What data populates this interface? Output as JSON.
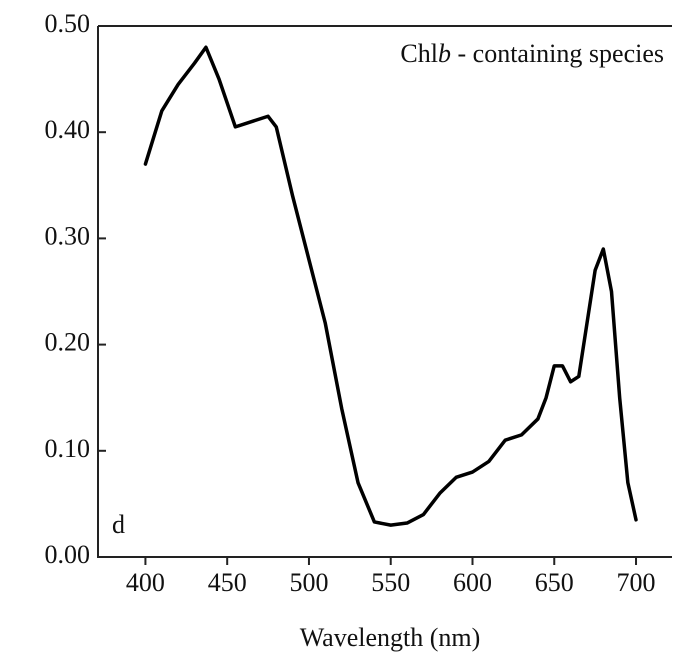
{
  "chart_data": {
    "type": "line",
    "annotation_parts": [
      "Chl",
      "b",
      " - containing species"
    ],
    "panel_label": "d",
    "x_label": "Wavelength (nm)",
    "x": [
      400,
      410,
      420,
      430,
      437,
      445,
      455,
      465,
      475,
      480,
      490,
      500,
      510,
      520,
      530,
      540,
      550,
      560,
      570,
      580,
      590,
      600,
      610,
      620,
      630,
      640,
      645,
      650,
      655,
      660,
      665,
      670,
      675,
      680,
      685,
      690,
      695,
      700
    ],
    "series": [
      {
        "color": "#000000",
        "values": [
          0.37,
          0.42,
          0.445,
          0.465,
          0.48,
          0.45,
          0.405,
          0.41,
          0.415,
          0.405,
          0.34,
          0.28,
          0.22,
          0.14,
          0.07,
          0.033,
          0.03,
          0.032,
          0.04,
          0.06,
          0.075,
          0.08,
          0.09,
          0.11,
          0.115,
          0.13,
          0.15,
          0.18,
          0.18,
          0.165,
          0.17,
          0.22,
          0.27,
          0.29,
          0.25,
          0.15,
          0.07,
          0.035
        ]
      }
    ],
    "xlim": [
      371,
      722
    ],
    "ylim": [
      0,
      0.5
    ],
    "xticks": [
      400,
      450,
      500,
      550,
      600,
      650,
      700
    ],
    "yticks": [
      {
        "value": 0,
        "label": "0.00"
      },
      {
        "value": 0.1,
        "label": "0.10"
      },
      {
        "value": 0.2,
        "label": "0.20"
      },
      {
        "value": 0.3,
        "label": "0.30"
      },
      {
        "value": 0.4,
        "label": "0.40"
      },
      {
        "value": 0.5,
        "label": "0.50"
      }
    ]
  }
}
